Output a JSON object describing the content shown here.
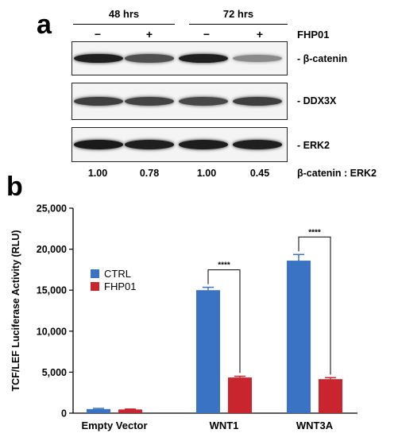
{
  "panel_a": {
    "letter": "a",
    "timepoints": [
      "48 hrs",
      "72 hrs"
    ],
    "treatment_label": "FHP01",
    "lane_signs": [
      "−",
      "+",
      "−",
      "+"
    ],
    "blots": [
      {
        "label": "- β-catenin",
        "intensities": [
          0.95,
          0.72,
          0.95,
          0.45
        ]
      },
      {
        "label": "- DDX3X",
        "intensities": [
          0.8,
          0.78,
          0.76,
          0.8
        ]
      },
      {
        "label": "- ERK2",
        "intensities": [
          0.97,
          0.95,
          0.96,
          0.95
        ]
      }
    ],
    "ratios": [
      "1.00",
      "0.78",
      "1.00",
      "0.45"
    ],
    "ratio_label": "β-catenin : ERK2"
  },
  "panel_b": {
    "letter": "b"
  },
  "chart_data": {
    "type": "bar",
    "categories": [
      "Empty Vector",
      "WNT1",
      "WNT3A"
    ],
    "series": [
      {
        "name": "CTRL",
        "color": "#3a73c4",
        "values": [
          500,
          15000,
          18600
        ],
        "errors": [
          80,
          350,
          750
        ]
      },
      {
        "name": "FHP01",
        "color": "#c8252f",
        "values": [
          450,
          4350,
          4150
        ],
        "errors": [
          50,
          150,
          180
        ]
      }
    ],
    "ylabel": "TCF/LEF Luciferase Activity (RLU)",
    "xlabel": "",
    "ylim": [
      0,
      25000
    ],
    "yticks": [
      "0",
      "5,000",
      "10,000",
      "15,000",
      "20,000",
      "25,000"
    ],
    "ytick_values": [
      0,
      5000,
      10000,
      15000,
      20000,
      25000
    ],
    "grid": false,
    "legend_position": "upper-left",
    "significance": [
      {
        "category": "WNT1",
        "label": "****"
      },
      {
        "category": "WNT3A",
        "label": "****"
      }
    ]
  }
}
